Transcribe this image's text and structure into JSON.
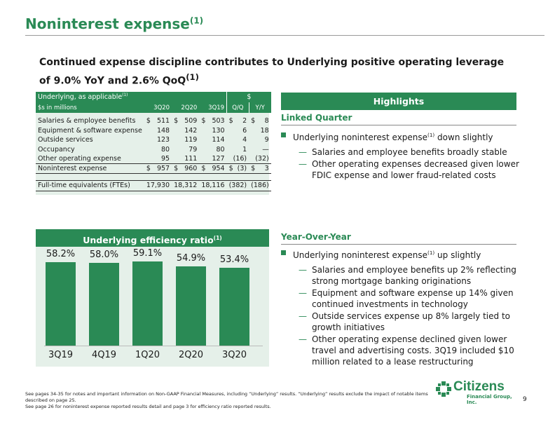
{
  "title": "Noninterest expense",
  "title_sup": "(1)",
  "subtitle": "Continued expense discipline contributes to Underlying positive operating leverage of 9.0% YoY and 2.6% QoQ",
  "subtitle_sup": "(1)",
  "table": {
    "header_label": "Underlying, as applicable",
    "header_sup": "(1)",
    "unit_label": "$s in millions",
    "change_label": "$",
    "columns": [
      "3Q20",
      "2Q20",
      "3Q19",
      "Q/Q",
      "Y/Y"
    ],
    "rows": [
      {
        "label": "Salaries & employee benefits",
        "d1": "$",
        "v1": "511",
        "d2": "$",
        "v2": "509",
        "d3": "$",
        "v3": "503",
        "d4": "$",
        "v4": "2",
        "d5": "$",
        "v5": "8"
      },
      {
        "label": "Equipment & software expense",
        "d1": "",
        "v1": "148",
        "d2": "",
        "v2": "142",
        "d3": "",
        "v3": "130",
        "d4": "",
        "v4": "6",
        "d5": "",
        "v5": "18"
      },
      {
        "label": "Outside services",
        "d1": "",
        "v1": "123",
        "d2": "",
        "v2": "119",
        "d3": "",
        "v3": "114",
        "d4": "",
        "v4": "4",
        "d5": "",
        "v5": "9"
      },
      {
        "label": "Occupancy",
        "d1": "",
        "v1": "80",
        "d2": "",
        "v2": "79",
        "d3": "",
        "v3": "80",
        "d4": "",
        "v4": "1",
        "d5": "",
        "v5": "—"
      },
      {
        "label": "Other operating expense",
        "d1": "",
        "v1": "95",
        "d2": "",
        "v2": "111",
        "d3": "",
        "v3": "127",
        "d4": "",
        "v4": "(16)",
        "d5": "",
        "v5": "(32)"
      }
    ],
    "total": {
      "label": "Noninterest expense",
      "d1": "$",
      "v1": "957",
      "d2": "$",
      "v2": "960",
      "d3": "$",
      "v3": "954",
      "d4": "$",
      "v4": "(3)",
      "d5": "$",
      "v5": "3"
    },
    "fte": {
      "label": "Full-time equivalents (FTEs)",
      "v1": "17,930",
      "v2": "18,312",
      "v3": "18,116",
      "v4": "(382)",
      "v5": "(186)"
    }
  },
  "efficiency": {
    "title": "Underlying efficiency ratio",
    "title_sup": "(1)"
  },
  "chart_data": {
    "type": "bar",
    "title": "Underlying efficiency ratio",
    "categories": [
      "3Q19",
      "4Q19",
      "1Q20",
      "2Q20",
      "3Q20"
    ],
    "values": [
      58.2,
      58.0,
      59.1,
      54.9,
      53.4
    ],
    "value_labels": [
      "58.2%",
      "58.0%",
      "59.1%",
      "54.9%",
      "53.4%"
    ],
    "ylim": [
      0,
      62
    ],
    "grid": false,
    "bar_color": "#2a8a55"
  },
  "highlights": {
    "title": "Highlights",
    "linked_quarter": {
      "heading": "Linked Quarter",
      "bullet_pre": "Underlying noninterest expense",
      "bullet_sup": "(1)",
      "bullet_post": " down slightly",
      "subs": [
        "Salaries and employee benefits broadly stable",
        "Other operating expenses decreased given lower FDIC expense and lower fraud-related costs"
      ]
    },
    "yoy": {
      "heading": "Year-Over-Year",
      "bullet_pre": "Underlying noninterest expense",
      "bullet_sup": "(1)",
      "bullet_post": " up slightly",
      "subs": [
        "Salaries and employee benefits up 2% reflecting strong mortgage banking originations",
        "Equipment and software expense up 14% given continued investments in technology",
        "Outside services expense up 8% largely tied to growth initiatives",
        "Other operating expense declined given lower travel and advertising costs. 3Q19 included $10 million related to a lease restructuring"
      ]
    }
  },
  "footnote": [
    "See pages 34-35 for notes and important information on Non-GAAP Financial Measures, including “Underlying” results. “Underlying” results exclude the impact of notable items described on page 25.",
    "See page 26 for noninterest expense reported results detail and page 3 for efficiency ratio reported results."
  ],
  "logo": {
    "name": "Citizens",
    "sub": "Financial Group, Inc.",
    "mark": "citizens-logo-icon"
  },
  "page_number": "9",
  "colors": {
    "brand_green": "#2a8a55",
    "panel_bg": "#e5f0e9"
  }
}
